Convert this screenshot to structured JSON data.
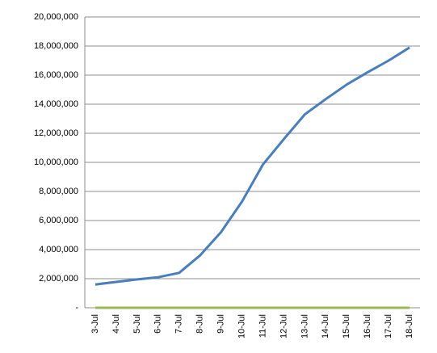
{
  "chart_data": {
    "type": "line",
    "categories": [
      "3-Jul",
      "4-Jul",
      "5-Jul",
      "6-Jul",
      "7-Jul",
      "8-Jul",
      "9-Jul",
      "10-Jul",
      "11-Jul",
      "12-Jul",
      "13-Jul",
      "14-Jul",
      "15-Jul",
      "16-Jul",
      "17-Jul",
      "18-Jul"
    ],
    "series": [
      {
        "color": "#4a7ebb",
        "values": [
          1600000,
          1780000,
          1950000,
          2100000,
          2400000,
          3600000,
          5200000,
          7300000,
          9850000,
          11600000,
          13300000,
          14350000,
          15350000,
          16200000,
          17000000,
          17900000
        ]
      },
      {
        "color": "#98b954",
        "values": [
          0,
          0,
          0,
          0,
          0,
          0,
          0,
          0,
          0,
          0,
          0,
          0,
          0,
          0,
          0,
          0
        ]
      }
    ],
    "ylim": [
      0,
      20000000
    ],
    "yticks": [
      {
        "value": 0,
        "label": "-"
      },
      {
        "value": 2000000,
        "label": "2,000,000"
      },
      {
        "value": 4000000,
        "label": "4,000,000"
      },
      {
        "value": 6000000,
        "label": "6,000,000"
      },
      {
        "value": 8000000,
        "label": "8,000,000"
      },
      {
        "value": 10000000,
        "label": "10,000,000"
      },
      {
        "value": 12000000,
        "label": "12,000,000"
      },
      {
        "value": 14000000,
        "label": "14,000,000"
      },
      {
        "value": 16000000,
        "label": "16,000,000"
      },
      {
        "value": 18000000,
        "label": "18,000,000"
      },
      {
        "value": 20000000,
        "label": "20,000,000"
      }
    ],
    "grid": true
  }
}
